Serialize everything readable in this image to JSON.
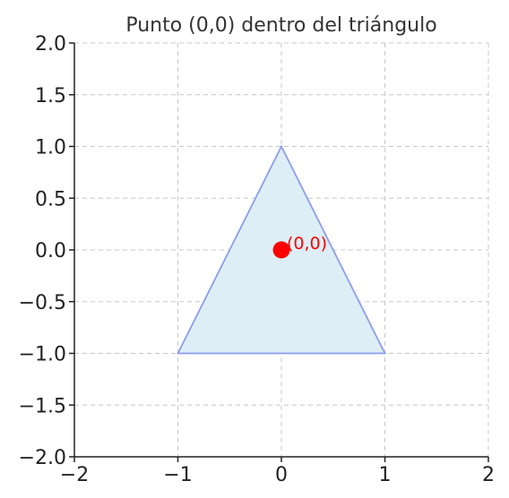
{
  "chart_data": {
    "type": "scatter",
    "title": "Punto (0,0) dentro del triángulo",
    "xlabel": "",
    "ylabel": "",
    "xlim": [
      -2,
      2
    ],
    "ylim": [
      -2,
      2
    ],
    "grid": true,
    "x_ticks": [
      -2,
      -1,
      0,
      1,
      2
    ],
    "x_tick_labels": [
      "−2",
      "−1",
      "0",
      "1",
      "2"
    ],
    "y_ticks": [
      2.0,
      1.5,
      1.0,
      0.5,
      0.0,
      -0.5,
      -1.0,
      -1.5,
      -2.0
    ],
    "y_tick_labels": [
      "2.0",
      "1.5",
      "1.0",
      "0.5",
      "0.0",
      "−0.5",
      "−1.0",
      "−1.5",
      "−2.0"
    ],
    "polygon": {
      "vertices": [
        [
          -1,
          -1
        ],
        [
          1,
          -1
        ],
        [
          0,
          1
        ]
      ],
      "fill": "#deeef6",
      "stroke": "#8c9cf0"
    },
    "points": [
      {
        "x": 0,
        "y": 0,
        "label": "(0,0)",
        "color": "#ff0000"
      }
    ]
  }
}
